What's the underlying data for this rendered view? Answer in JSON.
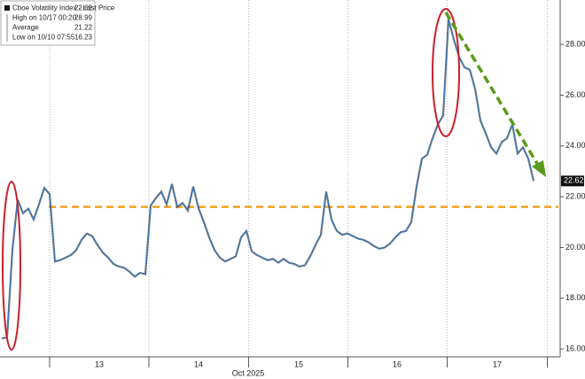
{
  "chart_data": {
    "type": "line",
    "series": [
      {
        "name": "Cboe Volatility Index - Last Price",
        "color": "#3a78b8",
        "values": [
          16.42,
          16.45,
          19.9,
          21.88,
          21.35,
          21.53,
          21.1,
          21.7,
          22.35,
          22.1,
          19.45,
          19.5,
          19.6,
          19.7,
          19.9,
          20.3,
          20.55,
          20.45,
          20.1,
          19.8,
          19.6,
          19.35,
          19.25,
          19.2,
          19.05,
          18.85,
          19.0,
          18.95,
          21.65,
          21.95,
          22.2,
          21.7,
          22.5,
          21.6,
          21.75,
          21.45,
          22.4,
          21.55,
          21.0,
          20.4,
          19.9,
          19.6,
          19.45,
          19.55,
          19.65,
          20.4,
          20.65,
          19.85,
          19.7,
          19.6,
          19.5,
          19.55,
          19.4,
          19.55,
          19.4,
          19.35,
          19.25,
          19.3,
          19.65,
          20.1,
          20.5,
          22.2,
          21.1,
          20.65,
          20.5,
          20.55,
          20.45,
          20.35,
          20.3,
          20.2,
          20.05,
          19.95,
          20.0,
          20.15,
          20.4,
          20.6,
          20.65,
          21.0,
          22.4,
          23.5,
          23.65,
          24.3,
          24.85,
          25.2,
          28.99,
          28.2,
          27.5,
          27.1,
          27.0,
          26.25,
          25.0,
          24.5,
          23.95,
          23.7,
          24.15,
          24.3,
          24.85,
          23.7,
          23.95,
          23.5,
          22.62
        ]
      }
    ],
    "stats": [
      {
        "label": "High on 10/17 00:20",
        "value": 28.99
      },
      {
        "label": "Average",
        "value": 21.22
      },
      {
        "label": "Low on 10/10 07:55",
        "value": 16.23
      }
    ],
    "xlabel": "Oct 2025",
    "xlim": [
      -0.33,
      105
    ],
    "xticks": [
      {
        "value": 18.33,
        "label": "13"
      },
      {
        "value": 37,
        "label": "14"
      },
      {
        "value": 55.83,
        "label": "15"
      },
      {
        "value": 74.33,
        "label": "16"
      },
      {
        "value": 93.17,
        "label": "17"
      }
    ],
    "ylim": [
      15.69,
      29.75
    ],
    "yticks": [
      {
        "value": 16,
        "label": "16.00"
      },
      {
        "value": 18,
        "label": "18.00"
      },
      {
        "value": 20,
        "label": "20.00"
      },
      {
        "value": 22,
        "label": "22.00"
      },
      {
        "value": 24,
        "label": "24.00"
      },
      {
        "value": 26,
        "label": "26.00"
      },
      {
        "value": 28,
        "label": "28.00"
      }
    ],
    "reference_line": {
      "value": 21.6,
      "color": "#f0a020"
    }
  }
}
